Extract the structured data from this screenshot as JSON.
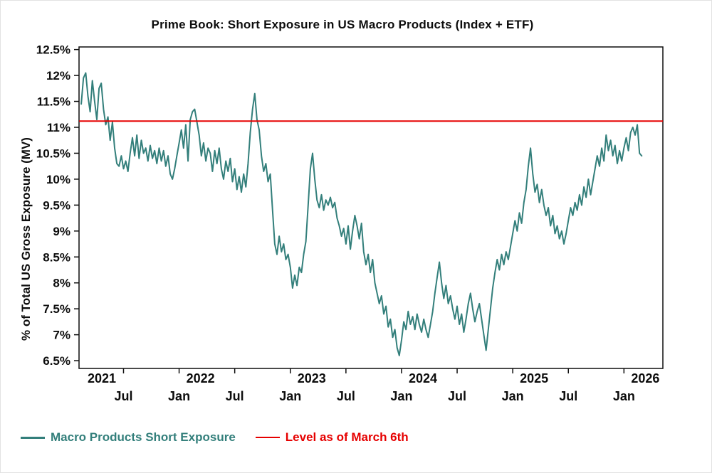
{
  "chart_data": {
    "type": "line",
    "title": "Prime Book: Short Exposure in US Macro Products (Index + ETF)",
    "ylabel": "% of Total US Gross Exposure (MV)",
    "x_domain": [
      2021.1,
      2026.35
    ],
    "y_domain": [
      6.35,
      12.55
    ],
    "y_ticks": [
      6.5,
      7,
      7.5,
      8,
      8.5,
      9,
      9.5,
      10,
      10.5,
      11,
      11.5,
      12,
      12.5
    ],
    "y_tick_suffix": "%",
    "grid": "off",
    "legend_position": "bottom-left",
    "x_month_ticks": [
      {
        "x": 2021.5,
        "label": "Jul"
      },
      {
        "x": 2022.0,
        "label": "Jan"
      },
      {
        "x": 2022.5,
        "label": "Jul"
      },
      {
        "x": 2023.0,
        "label": "Jan"
      },
      {
        "x": 2023.5,
        "label": "Jul"
      },
      {
        "x": 2024.0,
        "label": "Jan"
      },
      {
        "x": 2024.5,
        "label": "Jul"
      },
      {
        "x": 2025.0,
        "label": "Jan"
      },
      {
        "x": 2025.5,
        "label": "Jul"
      },
      {
        "x": 2026.0,
        "label": "Jan"
      }
    ],
    "x_year_labels": [
      {
        "x": 2021.0,
        "label": "2021"
      },
      {
        "x": 2022.0,
        "label": "2022"
      },
      {
        "x": 2023.0,
        "label": "2023"
      },
      {
        "x": 2024.0,
        "label": "2024"
      },
      {
        "x": 2025.0,
        "label": "2025"
      },
      {
        "x": 2026.0,
        "label": "2026"
      }
    ],
    "reference_line": {
      "value": 11.12,
      "color": "#e60000",
      "label": "Level as of March 6th"
    },
    "series": [
      {
        "name": "Macro Products Short Exposure",
        "color": "#337f7b",
        "points": [
          [
            2021.12,
            11.45
          ],
          [
            2021.14,
            11.95
          ],
          [
            2021.16,
            12.05
          ],
          [
            2021.18,
            11.6
          ],
          [
            2021.2,
            11.3
          ],
          [
            2021.22,
            11.9
          ],
          [
            2021.24,
            11.5
          ],
          [
            2021.26,
            11.15
          ],
          [
            2021.28,
            11.75
          ],
          [
            2021.3,
            11.85
          ],
          [
            2021.32,
            11.35
          ],
          [
            2021.34,
            11.05
          ],
          [
            2021.36,
            11.2
          ],
          [
            2021.38,
            10.75
          ],
          [
            2021.4,
            11.1
          ],
          [
            2021.42,
            10.6
          ],
          [
            2021.44,
            10.3
          ],
          [
            2021.46,
            10.25
          ],
          [
            2021.48,
            10.45
          ],
          [
            2021.5,
            10.2
          ],
          [
            2021.52,
            10.35
          ],
          [
            2021.54,
            10.15
          ],
          [
            2021.56,
            10.5
          ],
          [
            2021.58,
            10.8
          ],
          [
            2021.6,
            10.45
          ],
          [
            2021.62,
            10.85
          ],
          [
            2021.64,
            10.4
          ],
          [
            2021.66,
            10.75
          ],
          [
            2021.68,
            10.5
          ],
          [
            2021.7,
            10.6
          ],
          [
            2021.72,
            10.35
          ],
          [
            2021.74,
            10.65
          ],
          [
            2021.76,
            10.4
          ],
          [
            2021.78,
            10.55
          ],
          [
            2021.8,
            10.3
          ],
          [
            2021.82,
            10.6
          ],
          [
            2021.84,
            10.35
          ],
          [
            2021.86,
            10.55
          ],
          [
            2021.88,
            10.25
          ],
          [
            2021.9,
            10.45
          ],
          [
            2021.92,
            10.1
          ],
          [
            2021.94,
            10.0
          ],
          [
            2021.96,
            10.2
          ],
          [
            2021.98,
            10.45
          ],
          [
            2022.0,
            10.7
          ],
          [
            2022.02,
            10.95
          ],
          [
            2022.04,
            10.6
          ],
          [
            2022.06,
            11.05
          ],
          [
            2022.08,
            10.35
          ],
          [
            2022.1,
            11.15
          ],
          [
            2022.12,
            11.3
          ],
          [
            2022.14,
            11.35
          ],
          [
            2022.16,
            11.1
          ],
          [
            2022.18,
            10.85
          ],
          [
            2022.2,
            10.45
          ],
          [
            2022.22,
            10.7
          ],
          [
            2022.24,
            10.35
          ],
          [
            2022.26,
            10.6
          ],
          [
            2022.28,
            10.5
          ],
          [
            2022.3,
            10.15
          ],
          [
            2022.32,
            10.55
          ],
          [
            2022.34,
            10.3
          ],
          [
            2022.36,
            10.6
          ],
          [
            2022.38,
            10.2
          ],
          [
            2022.4,
            10.0
          ],
          [
            2022.42,
            10.35
          ],
          [
            2022.44,
            10.15
          ],
          [
            2022.46,
            10.4
          ],
          [
            2022.48,
            9.95
          ],
          [
            2022.5,
            10.2
          ],
          [
            2022.52,
            9.8
          ],
          [
            2022.54,
            10.05
          ],
          [
            2022.56,
            9.75
          ],
          [
            2022.58,
            10.1
          ],
          [
            2022.6,
            9.85
          ],
          [
            2022.62,
            10.3
          ],
          [
            2022.64,
            10.9
          ],
          [
            2022.66,
            11.35
          ],
          [
            2022.68,
            11.65
          ],
          [
            2022.7,
            11.15
          ],
          [
            2022.72,
            10.95
          ],
          [
            2022.74,
            10.45
          ],
          [
            2022.76,
            10.15
          ],
          [
            2022.78,
            10.3
          ],
          [
            2022.8,
            9.95
          ],
          [
            2022.82,
            10.1
          ],
          [
            2022.84,
            9.4
          ],
          [
            2022.86,
            8.75
          ],
          [
            2022.88,
            8.55
          ],
          [
            2022.9,
            8.9
          ],
          [
            2022.92,
            8.6
          ],
          [
            2022.94,
            8.75
          ],
          [
            2022.96,
            8.45
          ],
          [
            2022.98,
            8.55
          ],
          [
            2023.0,
            8.3
          ],
          [
            2023.02,
            7.9
          ],
          [
            2023.04,
            8.15
          ],
          [
            2023.06,
            7.95
          ],
          [
            2023.08,
            8.3
          ],
          [
            2023.1,
            8.2
          ],
          [
            2023.12,
            8.55
          ],
          [
            2023.14,
            8.8
          ],
          [
            2023.16,
            9.5
          ],
          [
            2023.18,
            10.2
          ],
          [
            2023.2,
            10.5
          ],
          [
            2023.22,
            10.0
          ],
          [
            2023.24,
            9.6
          ],
          [
            2023.26,
            9.45
          ],
          [
            2023.28,
            9.7
          ],
          [
            2023.3,
            9.4
          ],
          [
            2023.32,
            9.6
          ],
          [
            2023.34,
            9.5
          ],
          [
            2023.36,
            9.65
          ],
          [
            2023.38,
            9.45
          ],
          [
            2023.4,
            9.55
          ],
          [
            2023.42,
            9.25
          ],
          [
            2023.44,
            9.1
          ],
          [
            2023.46,
            8.9
          ],
          [
            2023.48,
            9.05
          ],
          [
            2023.5,
            8.75
          ],
          [
            2023.52,
            9.1
          ],
          [
            2023.54,
            8.65
          ],
          [
            2023.56,
            9.0
          ],
          [
            2023.58,
            9.3
          ],
          [
            2023.6,
            9.1
          ],
          [
            2023.62,
            8.85
          ],
          [
            2023.64,
            9.15
          ],
          [
            2023.66,
            8.6
          ],
          [
            2023.68,
            8.35
          ],
          [
            2023.7,
            8.55
          ],
          [
            2023.72,
            8.2
          ],
          [
            2023.74,
            8.45
          ],
          [
            2023.76,
            8.0
          ],
          [
            2023.78,
            7.8
          ],
          [
            2023.8,
            7.6
          ],
          [
            2023.82,
            7.75
          ],
          [
            2023.84,
            7.4
          ],
          [
            2023.86,
            7.55
          ],
          [
            2023.88,
            7.15
          ],
          [
            2023.9,
            7.3
          ],
          [
            2023.92,
            6.95
          ],
          [
            2023.94,
            7.1
          ],
          [
            2023.96,
            6.75
          ],
          [
            2023.98,
            6.6
          ],
          [
            2024.0,
            6.9
          ],
          [
            2024.02,
            7.25
          ],
          [
            2024.04,
            7.1
          ],
          [
            2024.06,
            7.45
          ],
          [
            2024.08,
            7.2
          ],
          [
            2024.1,
            7.35
          ],
          [
            2024.12,
            7.1
          ],
          [
            2024.14,
            7.4
          ],
          [
            2024.16,
            7.2
          ],
          [
            2024.18,
            7.05
          ],
          [
            2024.2,
            7.3
          ],
          [
            2024.22,
            7.1
          ],
          [
            2024.24,
            6.95
          ],
          [
            2024.26,
            7.2
          ],
          [
            2024.28,
            7.45
          ],
          [
            2024.3,
            7.8
          ],
          [
            2024.32,
            8.1
          ],
          [
            2024.34,
            8.4
          ],
          [
            2024.36,
            8.0
          ],
          [
            2024.38,
            7.7
          ],
          [
            2024.4,
            7.95
          ],
          [
            2024.42,
            7.6
          ],
          [
            2024.44,
            7.75
          ],
          [
            2024.46,
            7.5
          ],
          [
            2024.48,
            7.3
          ],
          [
            2024.5,
            7.55
          ],
          [
            2024.52,
            7.2
          ],
          [
            2024.54,
            7.4
          ],
          [
            2024.56,
            7.05
          ],
          [
            2024.58,
            7.3
          ],
          [
            2024.6,
            7.6
          ],
          [
            2024.62,
            7.8
          ],
          [
            2024.64,
            7.5
          ],
          [
            2024.66,
            7.25
          ],
          [
            2024.68,
            7.45
          ],
          [
            2024.7,
            7.6
          ],
          [
            2024.72,
            7.3
          ],
          [
            2024.74,
            7.0
          ],
          [
            2024.76,
            6.7
          ],
          [
            2024.78,
            7.1
          ],
          [
            2024.8,
            7.5
          ],
          [
            2024.82,
            7.9
          ],
          [
            2024.84,
            8.2
          ],
          [
            2024.86,
            8.45
          ],
          [
            2024.88,
            8.25
          ],
          [
            2024.9,
            8.55
          ],
          [
            2024.92,
            8.35
          ],
          [
            2024.94,
            8.6
          ],
          [
            2024.96,
            8.45
          ],
          [
            2024.98,
            8.7
          ],
          [
            2025.0,
            8.95
          ],
          [
            2025.02,
            9.2
          ],
          [
            2025.04,
            9.0
          ],
          [
            2025.06,
            9.35
          ],
          [
            2025.08,
            9.15
          ],
          [
            2025.1,
            9.55
          ],
          [
            2025.12,
            9.8
          ],
          [
            2025.14,
            10.25
          ],
          [
            2025.16,
            10.6
          ],
          [
            2025.18,
            10.1
          ],
          [
            2025.2,
            9.75
          ],
          [
            2025.22,
            9.9
          ],
          [
            2025.24,
            9.55
          ],
          [
            2025.26,
            9.8
          ],
          [
            2025.28,
            9.5
          ],
          [
            2025.3,
            9.3
          ],
          [
            2025.32,
            9.45
          ],
          [
            2025.34,
            9.1
          ],
          [
            2025.36,
            9.3
          ],
          [
            2025.38,
            8.95
          ],
          [
            2025.4,
            9.1
          ],
          [
            2025.42,
            8.85
          ],
          [
            2025.44,
            9.0
          ],
          [
            2025.46,
            8.75
          ],
          [
            2025.48,
            8.95
          ],
          [
            2025.5,
            9.2
          ],
          [
            2025.52,
            9.45
          ],
          [
            2025.54,
            9.3
          ],
          [
            2025.56,
            9.55
          ],
          [
            2025.58,
            9.4
          ],
          [
            2025.6,
            9.7
          ],
          [
            2025.62,
            9.5
          ],
          [
            2025.64,
            9.85
          ],
          [
            2025.66,
            9.65
          ],
          [
            2025.68,
            10.0
          ],
          [
            2025.7,
            9.7
          ],
          [
            2025.72,
            9.95
          ],
          [
            2025.74,
            10.2
          ],
          [
            2025.76,
            10.45
          ],
          [
            2025.78,
            10.25
          ],
          [
            2025.8,
            10.6
          ],
          [
            2025.82,
            10.35
          ],
          [
            2025.84,
            10.85
          ],
          [
            2025.86,
            10.55
          ],
          [
            2025.88,
            10.75
          ],
          [
            2025.9,
            10.45
          ],
          [
            2025.92,
            10.65
          ],
          [
            2025.94,
            10.3
          ],
          [
            2025.96,
            10.55
          ],
          [
            2025.98,
            10.35
          ],
          [
            2026.0,
            10.6
          ],
          [
            2026.02,
            10.8
          ],
          [
            2026.04,
            10.55
          ],
          [
            2026.06,
            10.9
          ],
          [
            2026.08,
            11.0
          ],
          [
            2026.1,
            10.85
          ],
          [
            2026.12,
            11.05
          ],
          [
            2026.14,
            10.5
          ],
          [
            2026.16,
            10.45
          ]
        ]
      }
    ]
  }
}
